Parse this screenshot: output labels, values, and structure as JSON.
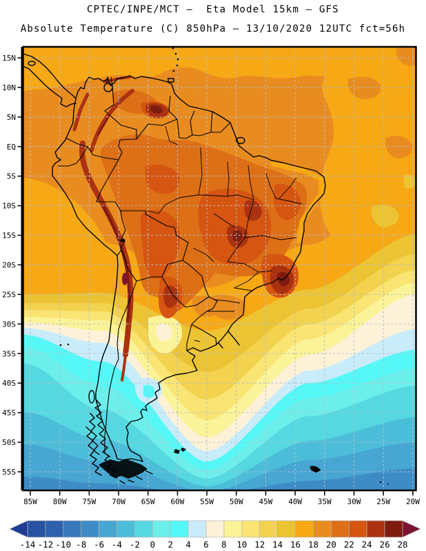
{
  "header": {
    "line1": "CPTEC/INPE/MCT –  Eta Model 15km – GFS",
    "line2": "Absolute Temperature (C) 850hPa – 13/10/2020 12UTC fct=56h"
  },
  "chart_data": {
    "type": "heatmap",
    "title": "CPTEC/INPE/MCT –  Eta Model 15km – GFS",
    "subtitle": "Absolute Temperature (C) 850hPa – 13/10/2020 12UTC fct=56h",
    "center": "CPTEC/INPE/MCT",
    "model": "Eta Model 15km",
    "boundary_conditions": "GFS",
    "variable": "Absolute Temperature",
    "units": "C",
    "level": "850hPa",
    "run_valid": "13/10/2020 12UTC",
    "forecast_hour": "fct=56h",
    "x_ticks": [
      "85W",
      "80W",
      "75W",
      "70W",
      "65W",
      "60W",
      "55W",
      "50W",
      "45W",
      "40W",
      "35W",
      "30W",
      "25W",
      "20W"
    ],
    "y_ticks": [
      "15N",
      "10N",
      "5N",
      "EQ",
      "5S",
      "10S",
      "15S",
      "20S",
      "25S",
      "30S",
      "35S",
      "40S",
      "45S",
      "50S",
      "55S"
    ],
    "grid": "dashed 5-degree graticule",
    "colorbar": {
      "orientation": "horizontal",
      "open_ended": true,
      "levels": [
        -14,
        -12,
        -10,
        -8,
        -6,
        -4,
        -2,
        0,
        2,
        4,
        6,
        8,
        10,
        12,
        14,
        16,
        18,
        20,
        22,
        24,
        26,
        28
      ],
      "colors": [
        "#1e3c96",
        "#2853a2",
        "#2e61ad",
        "#3878bb",
        "#3e8cc6",
        "#47a6d2",
        "#4cbdd9",
        "#55d8e0",
        "#6ceeea",
        "#55f8f6",
        "#c9ecfa",
        "#fdf2d8",
        "#fbf398",
        "#f9e474",
        "#f2d24e",
        "#ecc333",
        "#f6a815",
        "#e98c20",
        "#dd6f16",
        "#d55511",
        "#ab3210",
        "#7f1c10",
        "#7b1431"
      ]
    },
    "field_features": [
      "Maximum above 28C: small core on the Andes near 22S/70W (N Chile)",
      "26-28C cores: Peru/Bolivia Andes ridge, Guiana highlands, SE Brazil (Minas Gerais), central Brazil",
      "20-26C: Amazon basin, central and NE Brazil interior, Gran Chaco (Paraguay/N Argentina)",
      "16-20C: tropical oceans, Caribbean and northern South America",
      "8-16C: S Brazil, Uruguay, N Argentina and subtropical Atlantic",
      "0-8C: central Argentina, central Chile coast and mid-latitude oceans",
      "-8 to 0C: Patagonia, Tierra del Fuego and Southern Ocean"
    ]
  }
}
